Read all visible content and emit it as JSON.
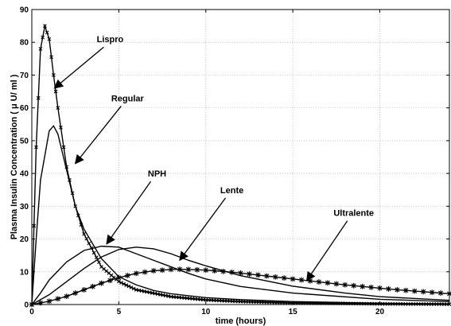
{
  "chart_data": {
    "type": "line",
    "title": "",
    "xlabel": "time (hours)",
    "ylabel": "Plasma Insulin Concentration ( μ U/ ml )",
    "xlim": [
      0,
      24
    ],
    "ylim": [
      0,
      90
    ],
    "xticks": [
      0,
      5,
      10,
      15,
      20
    ],
    "yticks": [
      0,
      10,
      20,
      30,
      40,
      50,
      60,
      70,
      80,
      90
    ],
    "grid": true,
    "legend": "none",
    "series": [
      {
        "name": "Lispro",
        "marker": "x",
        "color": "#000000",
        "x": [
          0,
          0.25,
          0.5,
          0.75,
          1.0,
          1.25,
          1.5,
          2,
          2.5,
          3,
          4,
          5,
          6,
          8,
          10,
          12,
          15,
          20,
          24
        ],
        "y": [
          0,
          48,
          78,
          85,
          81,
          70,
          60,
          42,
          30,
          21.5,
          11.5,
          7,
          4.5,
          2.4,
          1.4,
          0.9,
          0.5,
          0.2,
          0.1
        ]
      },
      {
        "name": "Regular",
        "marker": "none",
        "color": "#000000",
        "x": [
          0,
          0.25,
          0.5,
          1.0,
          1.25,
          1.5,
          2,
          2.5,
          3,
          4,
          5,
          6,
          7,
          8,
          10,
          12,
          15,
          20,
          24
        ],
        "y": [
          0,
          20,
          38,
          53,
          54.5,
          52,
          41,
          30,
          23,
          14,
          8.5,
          6,
          4.3,
          3.3,
          2.1,
          1.5,
          0.9,
          0.4,
          0.2
        ]
      },
      {
        "name": "NPH",
        "marker": "none",
        "color": "#000000",
        "x": [
          0,
          0.5,
          1,
          2,
          3,
          4,
          5,
          6,
          7,
          8,
          9,
          10,
          12,
          15,
          20,
          24
        ],
        "y": [
          0,
          3.5,
          7.5,
          13,
          16.5,
          17.8,
          17.5,
          15.5,
          13.5,
          11.5,
          9.5,
          7.8,
          5.5,
          3.5,
          1.6,
          0.9
        ]
      },
      {
        "name": "Lente",
        "marker": "none",
        "color": "#000000",
        "x": [
          0,
          1,
          2,
          3,
          4,
          5,
          6,
          7,
          8,
          9,
          10,
          12,
          15,
          18,
          20,
          24
        ],
        "y": [
          0,
          3,
          7,
          11,
          14.5,
          16.8,
          17.5,
          17,
          15.5,
          13.5,
          11.8,
          8.8,
          5.6,
          3.5,
          2.4,
          1.3
        ]
      },
      {
        "name": "Ultralente",
        "marker": "star",
        "color": "#000000",
        "x": [
          0,
          1,
          2,
          3,
          4,
          5,
          6,
          7,
          8,
          8.5,
          9,
          10,
          11,
          12,
          13,
          14,
          15,
          16,
          17,
          18,
          19,
          20,
          21,
          22,
          23,
          24
        ],
        "y": [
          0,
          1,
          2.5,
          4.5,
          6.5,
          8.2,
          9.5,
          10.3,
          10.7,
          10.75,
          10.7,
          10.5,
          10.1,
          9.6,
          9.0,
          8.4,
          7.8,
          7.2,
          6.6,
          6.0,
          5.5,
          5.0,
          4.5,
          4.1,
          3.7,
          3.3
        ]
      }
    ],
    "annotations": [
      {
        "text": "Lispro",
        "text_x": 4.5,
        "text_y": 80,
        "arrow_to_x": 1.3,
        "arrow_to_y": 66
      },
      {
        "text": "Regular",
        "text_x": 5.5,
        "text_y": 62,
        "arrow_to_x": 2.5,
        "arrow_to_y": 43
      },
      {
        "text": "NPH",
        "text_x": 7.2,
        "text_y": 39,
        "arrow_to_x": 4.3,
        "arrow_to_y": 18.5
      },
      {
        "text": "Lente",
        "text_x": 11.5,
        "text_y": 34,
        "arrow_to_x": 8.5,
        "arrow_to_y": 13.5
      },
      {
        "text": "Ultralente",
        "text_x": 18.5,
        "text_y": 27,
        "arrow_to_x": 15.8,
        "arrow_to_y": 7.3
      }
    ]
  }
}
